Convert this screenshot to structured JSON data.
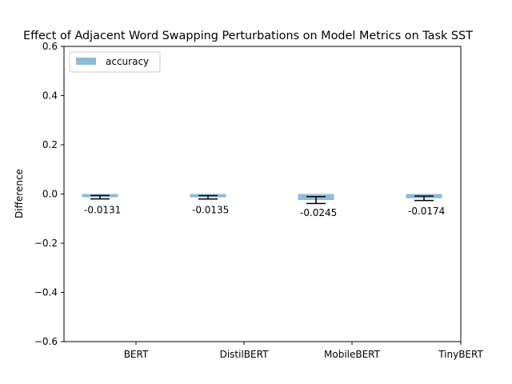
{
  "chart_data": {
    "type": "bar",
    "title": "Effect of Adjacent Word Swapping Perturbations on Model Metrics on Task SST",
    "xlabel": "",
    "ylabel": "Difference",
    "categories": [
      "BERT",
      "DistilBERT",
      "MobileBERT",
      "TinyBERT"
    ],
    "series": [
      {
        "name": "accuracy",
        "values": [
          -0.0131,
          -0.0135,
          -0.0245,
          -0.0174
        ],
        "error": [
          0.007,
          0.007,
          0.014,
          0.009
        ]
      }
    ],
    "data_labels": [
      "-0.0131",
      "-0.0135",
      "-0.0245",
      "-0.0174"
    ],
    "ylim": [
      -0.6,
      0.6
    ],
    "yticks": [
      -0.6,
      -0.4,
      -0.2,
      0.0,
      0.2,
      0.4,
      0.6
    ],
    "ytick_labels": [
      "−0.6",
      "−0.4",
      "−0.2",
      "0.0",
      "0.2",
      "0.4",
      "0.6"
    ],
    "grid": false,
    "legend_position": "top-left",
    "colors": {
      "bar": "#1f77b4",
      "bar_alpha": 0.5,
      "error": "#000000"
    }
  }
}
